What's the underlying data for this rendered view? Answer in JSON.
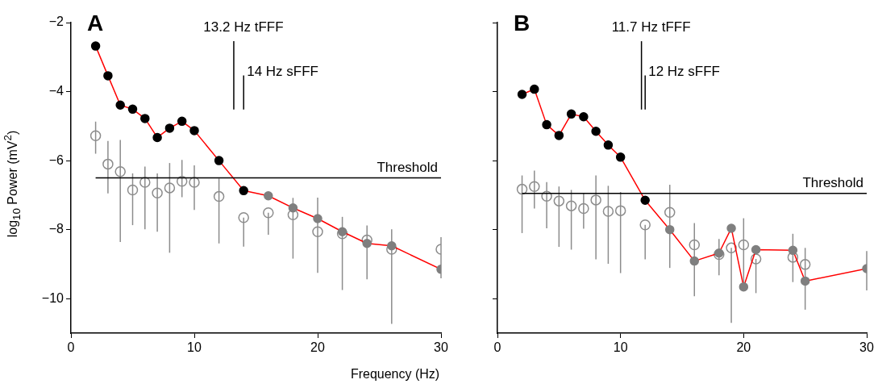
{
  "chart_data": [
    {
      "type": "scatter",
      "title": "A",
      "xlabel": "Frequency (Hz)",
      "ylabel": "log$_{10}$ Power (mV$^{2}$)",
      "xlim": [
        0,
        30
      ],
      "xticks": [
        0,
        10,
        20,
        30
      ],
      "ylim": [
        -11,
        -2
      ],
      "yticks": [
        {
          "value": -2,
          "label": "−2"
        },
        {
          "value": -4,
          "label": "−4"
        },
        {
          "value": -6,
          "label": "−6"
        },
        {
          "value": -8,
          "label": "−8"
        },
        {
          "value": -10,
          "label": "−10"
        }
      ],
      "grid": false,
      "legend": false,
      "marker": "circle",
      "ref_lines": [
        {
          "axis": "x",
          "value": 13.2,
          "label": "13.2 Hz tFFF",
          "color": "#000000"
        },
        {
          "axis": "x",
          "value": 14,
          "label": "14 Hz sFFF",
          "color": "#000000"
        },
        {
          "axis": "y",
          "value": -6.5,
          "label": "Threshold",
          "color": "#000000"
        }
      ],
      "series": [
        {
          "type": "scatter",
          "color": "#8c8c8c",
          "x": [
            2,
            3,
            4,
            5,
            6,
            7,
            8,
            9,
            10,
            12,
            14,
            16,
            18,
            20,
            22,
            24,
            26,
            30
          ],
          "values": [
            -5.28,
            -6.1,
            -6.32,
            -6.85,
            -6.63,
            -6.94,
            -6.79,
            -6.6,
            -6.63,
            -7.04,
            -7.65,
            -7.51,
            -7.57,
            -8.06,
            -8.12,
            -8.3,
            -8.57,
            -8.57
          ],
          "errors": [
            [
              -5.8,
              -4.87
            ],
            [
              -6.95,
              -5.43
            ],
            [
              -8.36,
              -5.4
            ],
            [
              -7.87,
              -6.37
            ],
            [
              -7.99,
              -6.17
            ],
            [
              -8.06,
              -6.37
            ],
            [
              -8.67,
              -6.07
            ],
            [
              -7.06,
              -5.98
            ],
            [
              -7.43,
              -6.14
            ],
            [
              -8.4,
              -6.52
            ],
            [
              -8.49,
              -7.65
            ],
            [
              -8.15,
              -7.51
            ],
            [
              -8.84,
              -7.08
            ],
            [
              -9.25,
              -7.07
            ],
            [
              -9.75,
              -7.63
            ],
            [
              -9.44,
              -7.88
            ],
            [
              -10.73,
              -7.99
            ],
            [
              -9.41,
              -8.22
            ]
          ]
        },
        {
          "type": "line",
          "color": "#ff0000",
          "x": [
            2,
            3,
            4,
            5,
            6,
            7,
            8,
            9,
            10,
            12,
            14,
            16,
            18,
            20,
            22,
            24,
            26,
            30
          ],
          "values": [
            -2.68,
            -3.54,
            -4.39,
            -4.51,
            -4.78,
            -5.33,
            -5.06,
            -4.86,
            -5.13,
            -6.0,
            -6.87,
            -7.02,
            -7.37,
            -7.68,
            -8.06,
            -8.4,
            -8.47,
            -9.15
          ],
          "colors": [
            "#000000",
            "#000000",
            "#000000",
            "#000000",
            "#000000",
            "#000000",
            "#000000",
            "#000000",
            "#000000",
            "#000000",
            "#000000",
            "#7f7f7f",
            "#7f7f7f",
            "#7f7f7f",
            "#7f7f7f",
            "#7f7f7f",
            "#7f7f7f",
            "#7f7f7f"
          ]
        }
      ]
    },
    {
      "type": "scatter",
      "title": "B",
      "xlim": [
        0,
        30
      ],
      "xticks": [
        0,
        10,
        20,
        30
      ],
      "ylim": [
        -11,
        -2
      ],
      "yticks": [
        -2,
        -4,
        -6,
        -8,
        -10
      ],
      "tick_labels": "x",
      "grid": false,
      "legend": false,
      "marker": "circle",
      "ref_lines": [
        {
          "axis": "x",
          "value": 11.7,
          "label": "11.7 Hz tFFF",
          "color": "#000000"
        },
        {
          "axis": "x",
          "value": 12,
          "label": "12 Hz sFFF",
          "color": "#000000"
        },
        {
          "axis": "y",
          "value": -6.95,
          "label": "Threshold",
          "color": "#000000"
        }
      ],
      "series": [
        {
          "type": "scatter",
          "color": "#8c8c8c",
          "x": [
            2,
            3,
            4,
            5,
            6,
            7,
            8,
            9,
            10,
            12,
            14,
            16,
            18,
            19,
            20,
            21,
            24,
            25
          ],
          "values": [
            -6.83,
            -6.75,
            -7.03,
            -7.17,
            -7.31,
            -7.39,
            -7.14,
            -7.47,
            -7.45,
            -7.86,
            -7.5,
            -8.44,
            -8.72,
            -8.53,
            -8.44,
            -8.85,
            -8.8,
            -9.01
          ],
          "errors": [
            [
              -8.1,
              -6.43
            ],
            [
              -7.39,
              -6.29
            ],
            [
              -7.96,
              -6.62
            ],
            [
              -8.5,
              -6.75
            ],
            [
              -8.58,
              -6.85
            ],
            [
              -7.97,
              -6.95
            ],
            [
              -8.86,
              -6.43
            ],
            [
              -8.99,
              -6.73
            ],
            [
              -9.26,
              -6.91
            ],
            [
              -8.86,
              -7.86
            ],
            [
              -9.11,
              -6.7
            ],
            [
              -9.93,
              -7.81
            ],
            [
              -9.32,
              -8.27
            ],
            [
              -10.7,
              -8.53
            ],
            [
              -9.6,
              -7.67
            ],
            [
              -9.84,
              -8.85
            ],
            [
              -9.52,
              -8.12
            ],
            [
              -10.32,
              -8.53
            ]
          ]
        },
        {
          "type": "line",
          "color": "#ff0000",
          "x": [
            2,
            3,
            4,
            5,
            6,
            7,
            8,
            9,
            10,
            12,
            14,
            16,
            18,
            19,
            20,
            21,
            24,
            25,
            30
          ],
          "values": [
            -4.08,
            -3.93,
            -4.96,
            -5.27,
            -4.65,
            -4.73,
            -5.15,
            -5.55,
            -5.9,
            -7.15,
            -8.0,
            -8.91,
            -8.68,
            -7.96,
            -9.66,
            -8.58,
            -8.6,
            -9.49,
            -9.13
          ],
          "colors": [
            "#000000",
            "#000000",
            "#000000",
            "#000000",
            "#000000",
            "#000000",
            "#000000",
            "#000000",
            "#000000",
            "#000000",
            "#7f7f7f",
            "#7f7f7f",
            "#7f7f7f",
            "#7f7f7f",
            "#7f7f7f",
            "#7f7f7f",
            "#7f7f7f",
            "#7f7f7f",
            "#7f7f7f"
          ],
          "errors": [
            null,
            null,
            null,
            null,
            null,
            null,
            null,
            null,
            null,
            null,
            null,
            null,
            null,
            null,
            null,
            null,
            null,
            null,
            [
              -9.76,
              -8.62
            ]
          ]
        }
      ]
    }
  ]
}
